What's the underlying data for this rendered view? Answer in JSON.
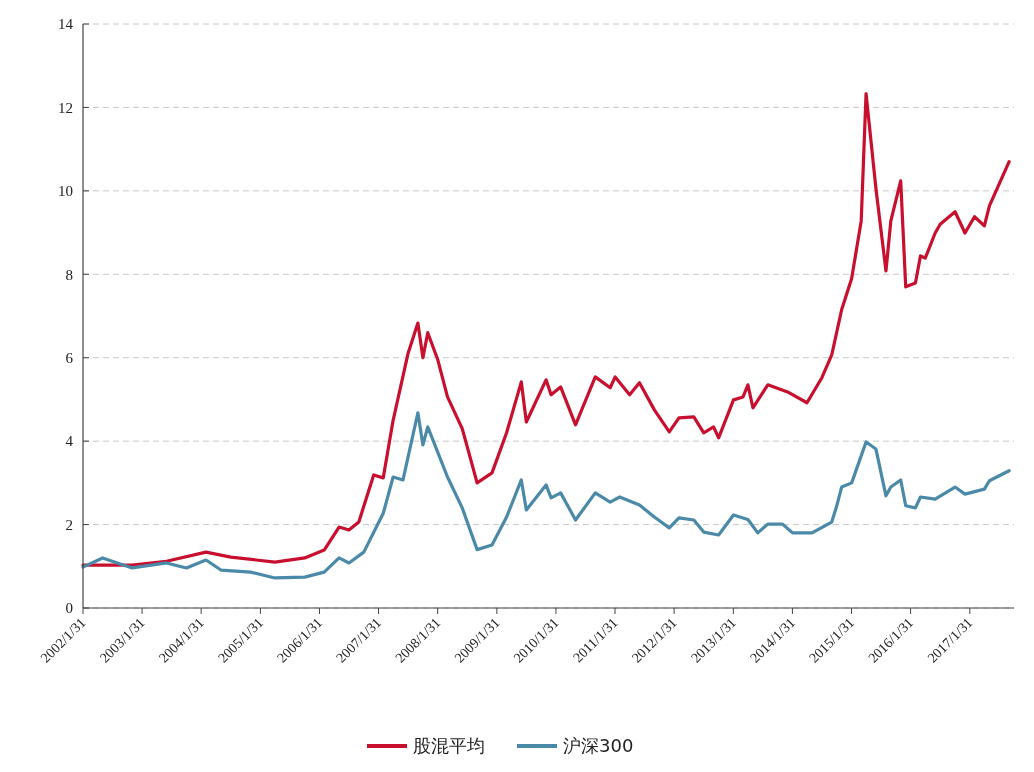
{
  "chart_data": {
    "type": "line",
    "xlim": [
      "2002-01-31",
      "2017-10-31"
    ],
    "xticks": [
      {
        "value": "2002-01-31",
        "label": "2002/1/31"
      },
      {
        "value": "2003-01-31",
        "label": "2003/1/31"
      },
      {
        "value": "2004-01-31",
        "label": "2004/1/31"
      },
      {
        "value": "2005-01-31",
        "label": "2005/1/31"
      },
      {
        "value": "2006-01-31",
        "label": "2006/1/31"
      },
      {
        "value": "2007-01-31",
        "label": "2007/1/31"
      },
      {
        "value": "2008-01-31",
        "label": "2008/1/31"
      },
      {
        "value": "2009-01-31",
        "label": "2009/1/31"
      },
      {
        "value": "2010-01-31",
        "label": "2010/1/31"
      },
      {
        "value": "2011-01-31",
        "label": "2011/1/31"
      },
      {
        "value": "2012-01-31",
        "label": "2012/1/31"
      },
      {
        "value": "2013-01-31",
        "label": "2013/1/31"
      },
      {
        "value": "2014-01-31",
        "label": "2014/1/31"
      },
      {
        "value": "2015-01-31",
        "label": "2015/1/31"
      },
      {
        "value": "2016-01-31",
        "label": "2016/1/31"
      },
      {
        "value": "2017-01-31",
        "label": "2017/1/31"
      }
    ],
    "ylim": [
      0,
      14
    ],
    "yticks": [
      0,
      2,
      4,
      6,
      8,
      10,
      12,
      14
    ],
    "grid": "y",
    "legend": "bottom",
    "marker": "none",
    "line_style": "solid",
    "series": [
      {
        "name": "股混平均",
        "color": "#c8102e",
        "x": [
          "2002-01-31",
          "2002-12",
          "2003-07",
          "2004-03",
          "2004-08",
          "2005-05",
          "2005-11",
          "2006-03",
          "2006-06",
          "2006-08",
          "2006-10",
          "2007-01",
          "2007-03",
          "2007-05",
          "2007-08",
          "2007-10",
          "2007-11",
          "2007-12",
          "2008-02",
          "2008-04",
          "2008-07",
          "2008-10",
          "2009-01",
          "2009-04",
          "2009-07",
          "2009-08",
          "2009-12",
          "2010-01",
          "2010-03",
          "2010-06",
          "2010-10",
          "2011-01",
          "2011-02",
          "2011-05",
          "2011-07",
          "2011-10",
          "2012-01",
          "2012-03",
          "2012-06",
          "2012-08",
          "2012-10",
          "2012-11",
          "2013-02",
          "2013-04",
          "2013-05",
          "2013-06",
          "2013-09",
          "2014-01",
          "2014-05",
          "2014-08",
          "2014-10",
          "2014-12",
          "2015-02",
          "2015-04",
          "2015-05",
          "2015-07",
          "2015-09",
          "2015-10",
          "2015-12",
          "2016-01",
          "2016-03",
          "2016-04",
          "2016-05",
          "2016-07",
          "2016-08",
          "2016-11",
          "2017-01",
          "2017-03",
          "2017-05",
          "2017-06",
          "2017-10"
        ],
        "values": [
          1.03,
          1.03,
          1.12,
          1.34,
          1.22,
          1.1,
          1.2,
          1.39,
          1.94,
          1.87,
          2.06,
          3.19,
          3.12,
          4.5,
          6.1,
          6.83,
          6.0,
          6.6,
          5.95,
          5.06,
          4.3,
          3.0,
          3.24,
          4.2,
          5.42,
          4.46,
          5.47,
          5.11,
          5.3,
          4.39,
          5.54,
          5.28,
          5.54,
          5.11,
          5.4,
          4.75,
          4.22,
          4.56,
          4.58,
          4.2,
          4.34,
          4.08,
          4.99,
          5.06,
          5.35,
          4.8,
          5.35,
          5.18,
          4.92,
          5.52,
          6.07,
          7.15,
          7.9,
          9.28,
          12.33,
          10.05,
          8.08,
          9.28,
          10.24,
          7.7,
          7.79,
          8.44,
          8.39,
          8.99,
          9.2,
          9.5,
          8.99,
          9.38,
          9.16,
          9.64,
          10.7
        ]
      },
      {
        "name": "沪深300",
        "color": "#4a8aa8",
        "x": [
          "2002-01-31",
          "2002-06",
          "2002-12",
          "2003-07",
          "2003-11",
          "2004-03",
          "2004-06",
          "2004-12",
          "2005-05",
          "2005-11",
          "2006-03",
          "2006-06",
          "2006-08",
          "2006-11",
          "2007-03",
          "2007-05",
          "2007-07",
          "2007-10",
          "2007-11",
          "2007-12",
          "2008-04",
          "2008-07",
          "2008-10",
          "2009-01",
          "2009-04",
          "2009-07",
          "2009-08",
          "2009-12",
          "2010-01",
          "2010-03",
          "2010-06",
          "2010-10",
          "2011-01",
          "2011-03",
          "2011-07",
          "2011-10",
          "2012-01",
          "2012-03",
          "2012-06",
          "2012-08",
          "2012-11",
          "2013-02",
          "2013-05",
          "2013-07",
          "2013-09",
          "2013-12",
          "2014-02",
          "2014-06",
          "2014-10",
          "2014-11",
          "2014-12",
          "2015-02",
          "2015-05",
          "2015-07",
          "2015-09",
          "2015-10",
          "2015-12",
          "2016-01",
          "2016-03",
          "2016-04",
          "2016-07",
          "2016-11",
          "2017-01",
          "2017-05",
          "2017-06",
          "2017-10"
        ],
        "values": [
          0.98,
          1.2,
          0.96,
          1.08,
          0.96,
          1.15,
          0.91,
          0.86,
          0.72,
          0.74,
          0.86,
          1.2,
          1.08,
          1.34,
          2.27,
          3.14,
          3.07,
          4.68,
          3.91,
          4.34,
          3.14,
          2.4,
          1.4,
          1.51,
          2.18,
          3.07,
          2.35,
          2.95,
          2.64,
          2.76,
          2.11,
          2.76,
          2.54,
          2.66,
          2.47,
          2.18,
          1.92,
          2.16,
          2.11,
          1.82,
          1.75,
          2.23,
          2.12,
          1.8,
          2.01,
          2.01,
          1.8,
          1.8,
          2.06,
          2.45,
          2.9,
          3.0,
          3.98,
          3.81,
          2.69,
          2.9,
          3.07,
          2.45,
          2.4,
          2.66,
          2.61,
          2.9,
          2.73,
          2.85,
          3.05,
          3.29
        ]
      }
    ]
  }
}
